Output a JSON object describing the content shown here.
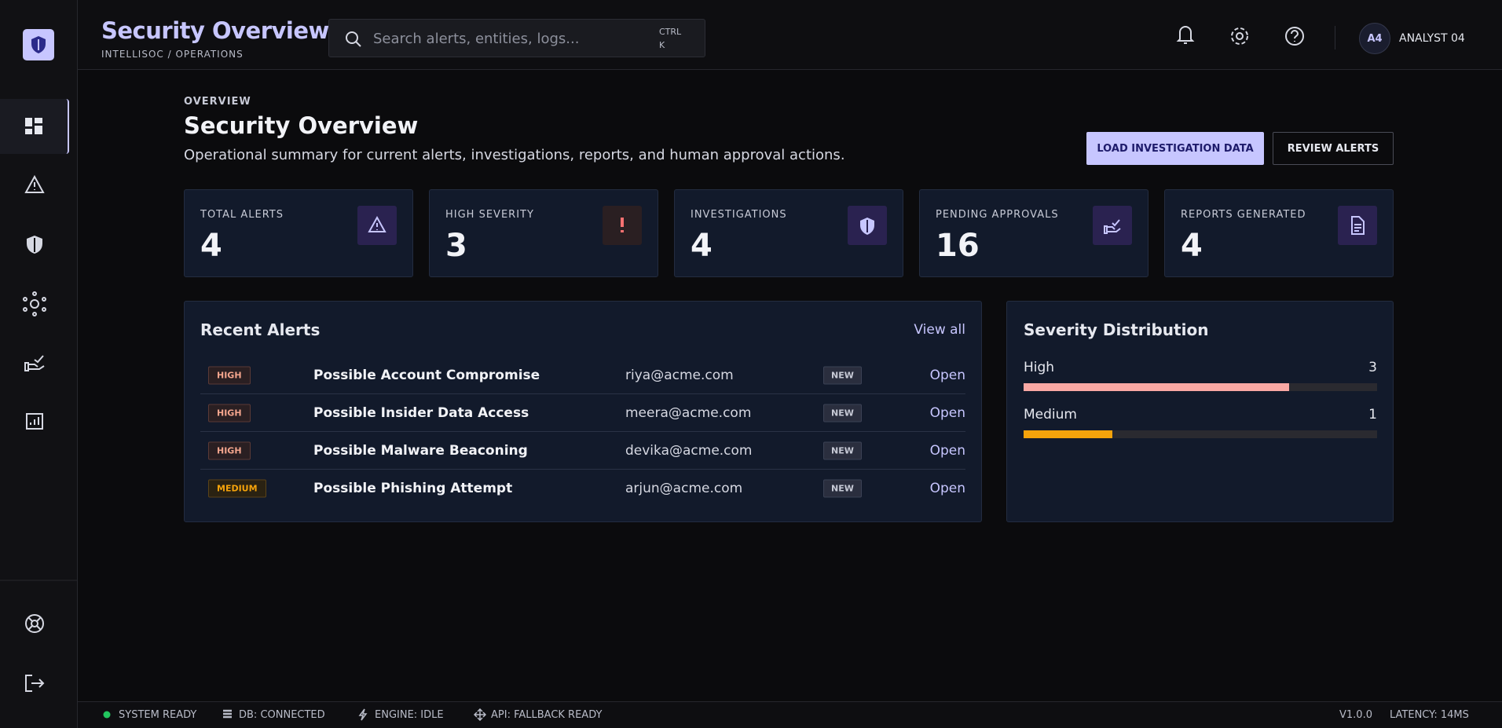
{
  "brand": {
    "title": "Security Overview",
    "subtitle": "INTELLISOC / OPERATIONS"
  },
  "search": {
    "placeholder": "Search alerts, entities, logs...",
    "shortcut": [
      "CTRL",
      "K"
    ]
  },
  "user": {
    "initials": "A4",
    "name": "ANALYST 04"
  },
  "page": {
    "eyebrow": "OVERVIEW",
    "title": "Security Overview",
    "description": "Operational summary for current alerts, investigations, reports, and human approval actions.",
    "actions": [
      "LOAD INVESTIGATION DATA",
      "REVIEW ALERTS"
    ]
  },
  "stats": [
    {
      "label": "TOTAL ALERTS",
      "value": 4
    },
    {
      "label": "HIGH SEVERITY",
      "value": 3
    },
    {
      "label": "INVESTIGATIONS",
      "value": 4
    },
    {
      "label": "PENDING APPROVALS",
      "value": 16
    },
    {
      "label": "REPORTS GENERATED",
      "value": 4
    }
  ],
  "recent_alerts": {
    "title": "Recent Alerts",
    "link": "View all",
    "rows": [
      {
        "severity": "HIGH",
        "title": "Possible Account Compromise",
        "entity": "riya@acme.com",
        "status": "NEW",
        "action": "Open"
      },
      {
        "severity": "HIGH",
        "title": "Possible Insider Data Access",
        "entity": "meera@acme.com",
        "status": "NEW",
        "action": "Open"
      },
      {
        "severity": "HIGH",
        "title": "Possible Malware Beaconing",
        "entity": "devika@acme.com",
        "status": "NEW",
        "action": "Open"
      },
      {
        "severity": "MEDIUM",
        "title": "Possible Phishing Attempt",
        "entity": "arjun@acme.com",
        "status": "NEW",
        "action": "Open"
      }
    ]
  },
  "severity_distribution": {
    "title": "Severity Distribution",
    "items": [
      {
        "label": "High",
        "count": 3,
        "color": "#f9a8a4"
      },
      {
        "label": "Medium",
        "count": 1,
        "color": "#f5a30b"
      }
    ]
  },
  "status_bar": {
    "items": [
      "SYSTEM READY",
      "DB: CONNECTED",
      "ENGINE: IDLE",
      "API: FALLBACK READY"
    ],
    "version": "V1.0.0",
    "latency": "LATENCY: 14MS"
  }
}
